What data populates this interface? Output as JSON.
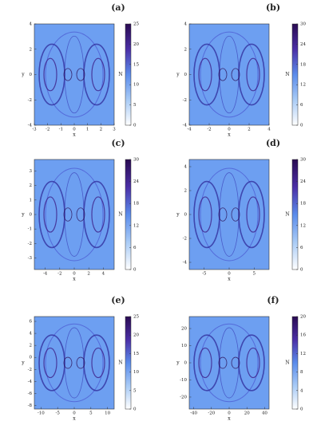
{
  "chart_data": [
    {
      "type": "heatmap",
      "title": "(a)",
      "x_label": "x",
      "y_label": "y",
      "xlim": [
        -3,
        3
      ],
      "ylim": [
        -4,
        4
      ],
      "xticks": [
        -3,
        -2,
        -1,
        0,
        1,
        2,
        3
      ],
      "yticks": [
        -4,
        -2,
        0,
        2,
        4
      ],
      "colorbar_label": "N",
      "colorbar_lim": [
        0,
        25
      ],
      "colorbar_ticks": [
        0,
        5,
        10,
        15,
        20,
        25
      ],
      "colormap": [
        "#ffffff",
        "#a9cbf6",
        "#5b8ceb",
        "#4b2fa6",
        "#2a0b52"
      ],
      "background_color": "#6d9ff1"
    },
    {
      "type": "heatmap",
      "title": "(b)",
      "x_label": "x",
      "y_label": "y",
      "xlim": [
        -4,
        4
      ],
      "ylim": [
        -4,
        4
      ],
      "xticks": [
        -4,
        -2,
        0,
        2,
        4
      ],
      "yticks": [
        -4,
        -2,
        0,
        2,
        4
      ],
      "colorbar_label": "N",
      "colorbar_lim": [
        0,
        30
      ],
      "colorbar_ticks": [
        0,
        6,
        12,
        18,
        24,
        30
      ],
      "colormap": [
        "#ffffff",
        "#a9cbf6",
        "#5b8ceb",
        "#4b2fa6",
        "#2a0b52"
      ],
      "background_color": "#6d9ff1"
    },
    {
      "type": "heatmap",
      "title": "(c)",
      "x_label": "x",
      "y_label": "y",
      "xlim": [
        -5.5,
        5.5
      ],
      "ylim": [
        -3.8,
        3.8
      ],
      "xticks": [
        -4,
        -2,
        0,
        2,
        4
      ],
      "yticks": [
        -3,
        -2,
        -1,
        0,
        1,
        2,
        3
      ],
      "colorbar_label": "N",
      "colorbar_lim": [
        0,
        30
      ],
      "colorbar_ticks": [
        0,
        6,
        12,
        18,
        24,
        30
      ],
      "colormap": [
        "#ffffff",
        "#a9cbf6",
        "#5b8ceb",
        "#4b2fa6",
        "#2a0b52"
      ],
      "background_color": "#6d9ff1"
    },
    {
      "type": "heatmap",
      "title": "(d)",
      "x_label": "x",
      "y_label": "y",
      "xlim": [
        -8,
        8
      ],
      "ylim": [
        -4.6,
        4.6
      ],
      "xticks": [
        -5,
        0,
        5
      ],
      "yticks": [
        -4,
        -2,
        0,
        2,
        4
      ],
      "colorbar_label": "N",
      "colorbar_lim": [
        0,
        30
      ],
      "colorbar_ticks": [
        0,
        6,
        12,
        18,
        24,
        30
      ],
      "colormap": [
        "#ffffff",
        "#a9cbf6",
        "#5b8ceb",
        "#4b2fa6",
        "#2a0b52"
      ],
      "background_color": "#6d9ff1"
    },
    {
      "type": "heatmap",
      "title": "(e)",
      "x_label": "x",
      "y_label": "y",
      "xlim": [
        -12,
        12
      ],
      "ylim": [
        -8.6,
        6.8
      ],
      "xticks": [
        -10,
        -5,
        0,
        5,
        10
      ],
      "yticks": [
        -8,
        -6,
        -4,
        -2,
        0,
        2,
        4,
        6
      ],
      "colorbar_label": "N",
      "colorbar_lim": [
        0,
        25
      ],
      "colorbar_ticks": [
        0,
        5,
        10,
        15,
        20,
        25
      ],
      "colormap": [
        "#ffffff",
        "#a9cbf6",
        "#5b8ceb",
        "#4b2fa6",
        "#2a0b52"
      ],
      "background_color": "#6d9ff1"
    },
    {
      "type": "heatmap",
      "title": "(f)",
      "x_label": "x",
      "y_label": "y",
      "xlim": [
        -45,
        45
      ],
      "ylim": [
        -27,
        27
      ],
      "xticks": [
        -40,
        -20,
        0,
        20,
        40
      ],
      "yticks": [
        -20,
        -10,
        0,
        10,
        20
      ],
      "colorbar_label": "N",
      "colorbar_lim": [
        0,
        20
      ],
      "colorbar_ticks": [
        0,
        4,
        8,
        12,
        16,
        20
      ],
      "colormap": [
        "#ffffff",
        "#a9cbf6",
        "#5b8ceb",
        "#4b2fa6",
        "#2a0b52"
      ],
      "background_color": "#6d9ff1"
    }
  ]
}
